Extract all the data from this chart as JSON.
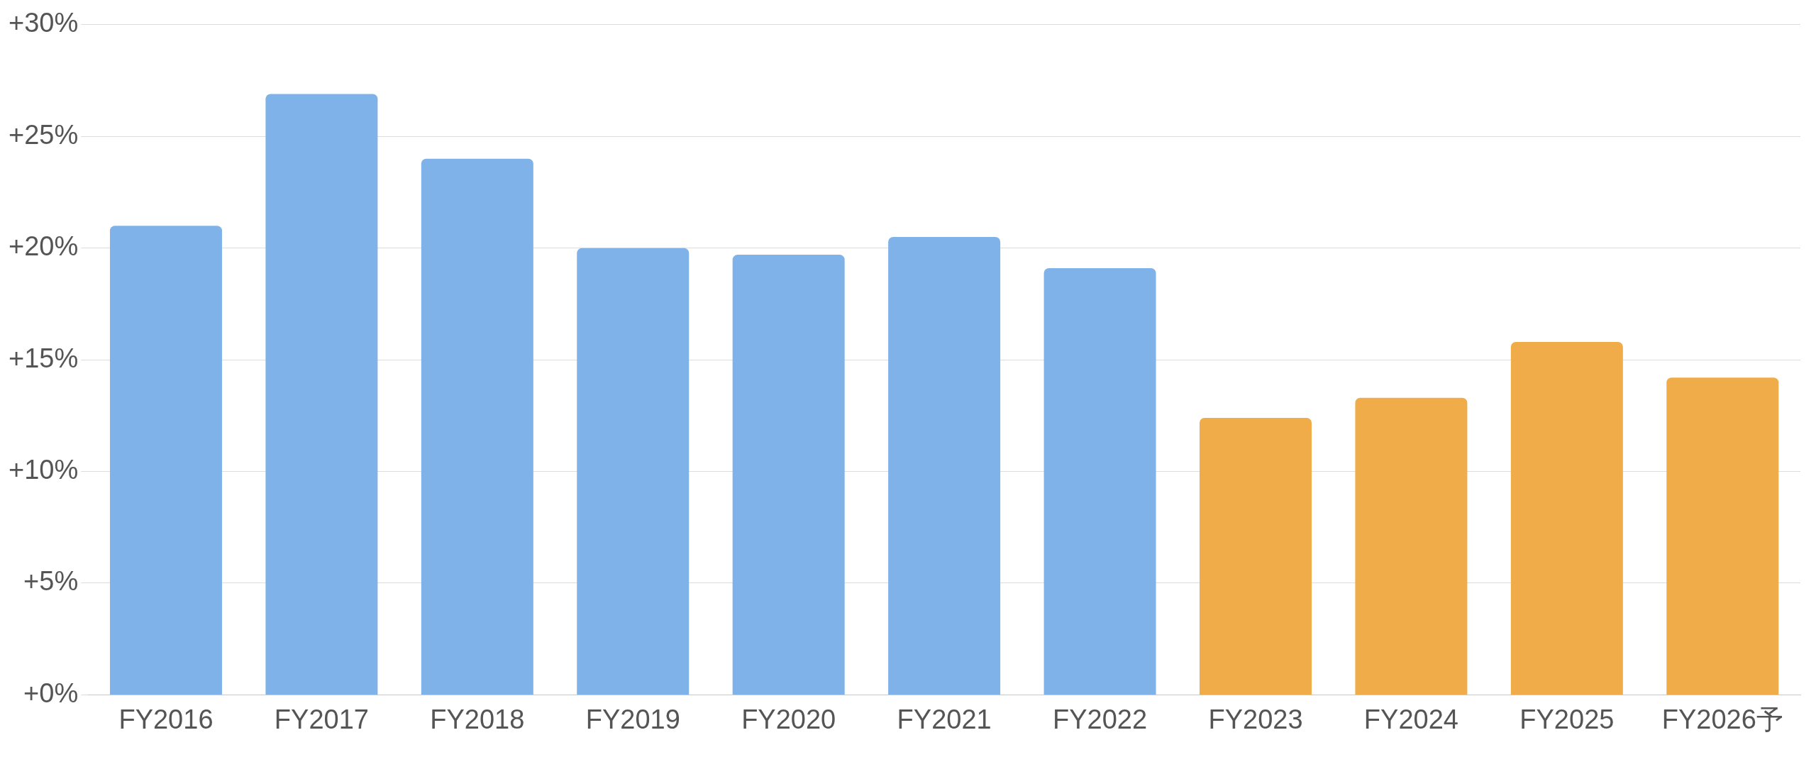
{
  "chart_data": {
    "type": "bar",
    "categories": [
      "FY2016",
      "FY2017",
      "FY2018",
      "FY2019",
      "FY2020",
      "FY2021",
      "FY2022",
      "FY2023",
      "FY2024",
      "FY2025",
      "FY2026予"
    ],
    "values": [
      21.0,
      26.9,
      24.0,
      20.0,
      19.7,
      20.5,
      19.1,
      12.4,
      13.3,
      15.8,
      14.2
    ],
    "colors": [
      "#7fb2e8",
      "#7fb2e8",
      "#7fb2e8",
      "#7fb2e8",
      "#7fb2e8",
      "#7fb2e8",
      "#7fb2e8",
      "#f0ac48",
      "#f0ac48",
      "#f0ac48",
      "#f0ac48"
    ],
    "ylim": [
      0,
      30
    ],
    "yticks": [
      {
        "value": 0,
        "label": "+0%"
      },
      {
        "value": 5,
        "label": "+5%"
      },
      {
        "value": 10,
        "label": "+10%"
      },
      {
        "value": 15,
        "label": "+15%"
      },
      {
        "value": 20,
        "label": "+20%"
      },
      {
        "value": 25,
        "label": "+25%"
      },
      {
        "value": 30,
        "label": "+30%"
      }
    ],
    "grid": "y",
    "legend": false
  }
}
